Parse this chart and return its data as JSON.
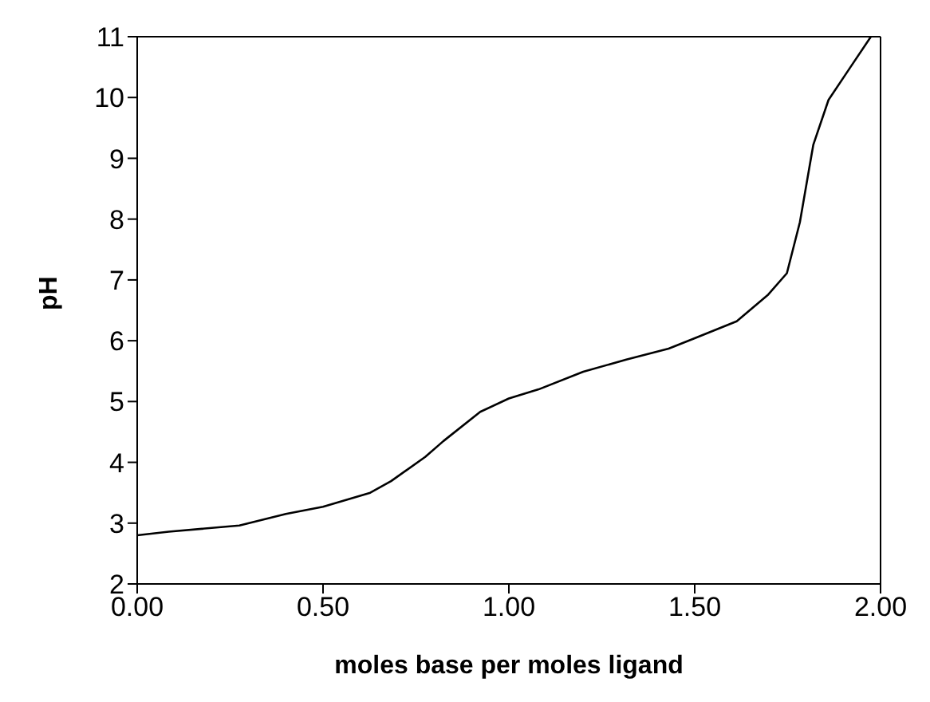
{
  "chart_data": {
    "type": "line",
    "xlabel": "moles base per moles ligand",
    "ylabel": "pH",
    "xlim": [
      0,
      2
    ],
    "xticks": [
      {
        "value": 0,
        "label": "0.00"
      },
      {
        "value": 0.5,
        "label": "0.50"
      },
      {
        "value": 1,
        "label": "1.00"
      },
      {
        "value": 1.5,
        "label": "1.50"
      },
      {
        "value": 2,
        "label": "2.00"
      }
    ],
    "ylim": [
      2,
      11
    ],
    "yticks": [
      2,
      3,
      4,
      5,
      6,
      7,
      8,
      9,
      10,
      11
    ],
    "grid": false,
    "legend": false,
    "marker": "none",
    "line_style": "solid",
    "series": [
      {
        "color": "#000000",
        "x": [
          0,
          0.085,
          0.275,
          0.4,
          0.5,
          0.627,
          0.683,
          0.775,
          0.824,
          0.923,
          1.0,
          1.08,
          1.2,
          1.316,
          1.43,
          1.5,
          1.613,
          1.698,
          1.748,
          1.783,
          1.819,
          1.86,
          1.918,
          1.974
        ],
        "values": [
          2.8,
          2.86,
          2.96,
          3.15,
          3.27,
          3.5,
          3.69,
          4.09,
          4.35,
          4.83,
          5.05,
          5.2,
          5.49,
          5.69,
          5.87,
          6.04,
          6.32,
          6.76,
          7.11,
          7.95,
          9.22,
          9.96,
          10.49,
          11.0
        ]
      }
    ]
  }
}
